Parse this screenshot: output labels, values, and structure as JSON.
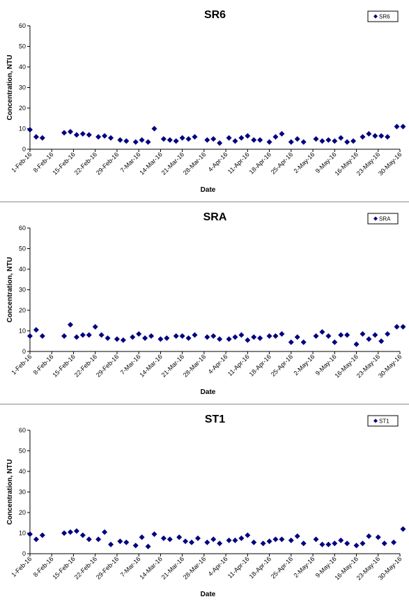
{
  "chart_data": [
    {
      "type": "scatter",
      "title": "SR6",
      "xlabel": "Date",
      "ylabel": "Concentration, NTU",
      "ylim": [
        0,
        60
      ],
      "yticks": [
        0,
        10,
        20,
        30,
        40,
        50,
        60
      ],
      "xlim": [
        "1-Feb-16",
        "30-May-16"
      ],
      "xtick_labels": [
        "1-Feb-16",
        "8-Feb-16",
        "15-Feb-16",
        "22-Feb-16",
        "29-Feb-16",
        "7-Mar-16",
        "14-Mar-16",
        "21-Mar-16",
        "28-Mar-16",
        "4-Apr-16",
        "11-Apr-16",
        "18-Apr-16",
        "25-Apr-16",
        "2-May-16",
        "9-May-16",
        "16-May-16",
        "23-May-16",
        "30-May-16"
      ],
      "legend_position": "top-right",
      "grid": false,
      "color": "#000080",
      "series": [
        {
          "name": "SR6",
          "x": [
            "1-Feb-16",
            "3-Feb-16",
            "5-Feb-16",
            "12-Feb-16",
            "14-Feb-16",
            "16-Feb-16",
            "18-Feb-16",
            "20-Feb-16",
            "23-Feb-16",
            "25-Feb-16",
            "27-Feb-16",
            "1-Mar-16",
            "3-Mar-16",
            "6-Mar-16",
            "8-Mar-16",
            "10-Mar-16",
            "12-Mar-16",
            "15-Mar-16",
            "17-Mar-16",
            "19-Mar-16",
            "21-Mar-16",
            "23-Mar-16",
            "25-Mar-16",
            "29-Mar-16",
            "31-Mar-16",
            "2-Apr-16",
            "5-Apr-16",
            "7-Apr-16",
            "9-Apr-16",
            "11-Apr-16",
            "13-Apr-16",
            "15-Apr-16",
            "18-Apr-16",
            "20-Apr-16",
            "22-Apr-16",
            "25-Apr-16",
            "27-Apr-16",
            "29-Apr-16",
            "3-May-16",
            "5-May-16",
            "7-May-16",
            "9-May-16",
            "11-May-16",
            "13-May-16",
            "15-May-16",
            "18-May-16",
            "20-May-16",
            "22-May-16",
            "24-May-16",
            "26-May-16",
            "29-May-16",
            "31-May-16"
          ],
          "y": [
            9.5,
            6,
            5.5,
            8,
            8.5,
            7,
            7.5,
            7,
            6,
            6.5,
            5.5,
            4.5,
            4,
            3.5,
            4.5,
            3.5,
            10,
            5,
            4.5,
            4,
            5.5,
            5,
            6,
            4.5,
            5,
            3,
            5.5,
            4,
            5.5,
            6.5,
            4.5,
            4.5,
            3.5,
            6,
            7.5,
            3.5,
            5,
            3.5,
            5,
            4,
            4.5,
            4,
            5.5,
            3.5,
            4,
            6,
            7.5,
            6.5,
            6.5,
            6,
            11,
            11
          ]
        }
      ]
    },
    {
      "type": "scatter",
      "title": "SRA",
      "xlabel": "Date",
      "ylabel": "Concentration, NTU",
      "ylim": [
        0,
        60
      ],
      "yticks": [
        0,
        10,
        20,
        30,
        40,
        50,
        60
      ],
      "xlim": [
        "1-Feb-16",
        "30-May-16"
      ],
      "xtick_labels": [
        "1-Feb-16",
        "8-Feb-16",
        "15-Feb-16",
        "22-Feb-16",
        "29-Feb-16",
        "7-Mar-16",
        "14-Mar-16",
        "21-Mar-16",
        "28-Mar-16",
        "4-Apr-16",
        "11-Apr-16",
        "18-Apr-16",
        "25-Apr-16",
        "2-May-16",
        "9-May-16",
        "16-May-16",
        "23-May-16",
        "30-May-16"
      ],
      "legend_position": "top-right",
      "grid": false,
      "color": "#000080",
      "series": [
        {
          "name": "SRA",
          "x": [
            "1-Feb-16",
            "3-Feb-16",
            "5-Feb-16",
            "12-Feb-16",
            "14-Feb-16",
            "16-Feb-16",
            "18-Feb-16",
            "20-Feb-16",
            "22-Feb-16",
            "24-Feb-16",
            "26-Feb-16",
            "29-Feb-16",
            "2-Mar-16",
            "5-Mar-16",
            "7-Mar-16",
            "9-Mar-16",
            "11-Mar-16",
            "14-Mar-16",
            "16-Mar-16",
            "19-Mar-16",
            "21-Mar-16",
            "23-Mar-16",
            "25-Mar-16",
            "29-Mar-16",
            "31-Mar-16",
            "2-Apr-16",
            "5-Apr-16",
            "7-Apr-16",
            "9-Apr-16",
            "11-Apr-16",
            "13-Apr-16",
            "15-Apr-16",
            "18-Apr-16",
            "20-Apr-16",
            "22-Apr-16",
            "25-Apr-16",
            "27-Apr-16",
            "29-Apr-16",
            "3-May-16",
            "5-May-16",
            "7-May-16",
            "9-May-16",
            "11-May-16",
            "13-May-16",
            "16-May-16",
            "18-May-16",
            "20-May-16",
            "22-May-16",
            "24-May-16",
            "26-May-16",
            "29-May-16",
            "31-May-16"
          ],
          "y": [
            7.5,
            10.5,
            7.5,
            7.5,
            13,
            7,
            8,
            8,
            12,
            8,
            6.5,
            6,
            5.5,
            7,
            8.5,
            6.5,
            7.5,
            6,
            6.5,
            7.5,
            7.5,
            6.5,
            8,
            7,
            7.5,
            6,
            6,
            7,
            8,
            5.5,
            7,
            6.5,
            7.5,
            7.5,
            8.5,
            4.5,
            7,
            4.5,
            7.5,
            9.5,
            7.5,
            4.5,
            8,
            8,
            3.5,
            8.5,
            6,
            8,
            5,
            8.5,
            12,
            12
          ]
        }
      ]
    },
    {
      "type": "scatter",
      "title": "ST1",
      "xlabel": "Date",
      "ylabel": "Concentration, NTU",
      "ylim": [
        0,
        60
      ],
      "yticks": [
        0,
        10,
        20,
        30,
        40,
        50,
        60
      ],
      "xlim": [
        "1-Feb-16",
        "30-May-16"
      ],
      "xtick_labels": [
        "1-Feb-16",
        "8-Feb-16",
        "15-Feb-16",
        "22-Feb-16",
        "29-Feb-16",
        "7-Mar-16",
        "14-Mar-16",
        "21-Mar-16",
        "28-Mar-16",
        "4-Apr-16",
        "11-Apr-16",
        "18-Apr-16",
        "25-Apr-16",
        "2-May-16",
        "9-May-16",
        "16-May-16",
        "23-May-16",
        "30-May-16"
      ],
      "legend_position": "top-right",
      "grid": false,
      "color": "#000080",
      "series": [
        {
          "name": "ST1",
          "x": [
            "1-Feb-16",
            "3-Feb-16",
            "5-Feb-16",
            "12-Feb-16",
            "14-Feb-16",
            "16-Feb-16",
            "18-Feb-16",
            "20-Feb-16",
            "23-Feb-16",
            "25-Feb-16",
            "27-Feb-16",
            "1-Mar-16",
            "3-Mar-16",
            "6-Mar-16",
            "8-Mar-16",
            "10-Mar-16",
            "12-Mar-16",
            "15-Mar-16",
            "17-Mar-16",
            "20-Mar-16",
            "22-Mar-16",
            "24-Mar-16",
            "26-Mar-16",
            "29-Mar-16",
            "31-Mar-16",
            "2-Apr-16",
            "5-Apr-16",
            "7-Apr-16",
            "9-Apr-16",
            "11-Apr-16",
            "13-Apr-16",
            "16-Apr-16",
            "18-Apr-16",
            "20-Apr-16",
            "22-Apr-16",
            "25-Apr-16",
            "27-Apr-16",
            "29-Apr-16",
            "3-May-16",
            "5-May-16",
            "7-May-16",
            "9-May-16",
            "11-May-16",
            "13-May-16",
            "16-May-16",
            "18-May-16",
            "20-May-16",
            "23-May-16",
            "25-May-16",
            "28-May-16",
            "31-May-16"
          ],
          "y": [
            9.5,
            7,
            9,
            10,
            10.5,
            11,
            9,
            7,
            7,
            10.5,
            4.5,
            6,
            5.5,
            4,
            8,
            3.5,
            9.5,
            7.5,
            7,
            8,
            6,
            5.5,
            7.5,
            5.5,
            7,
            5,
            6.5,
            6.5,
            7.5,
            9,
            5.5,
            5,
            6,
            7,
            7,
            6.5,
            8.5,
            5,
            7,
            4.5,
            4.5,
            5,
            6.5,
            5,
            4,
            5,
            8.5,
            8,
            5,
            5.5,
            12
          ]
        }
      ]
    }
  ]
}
